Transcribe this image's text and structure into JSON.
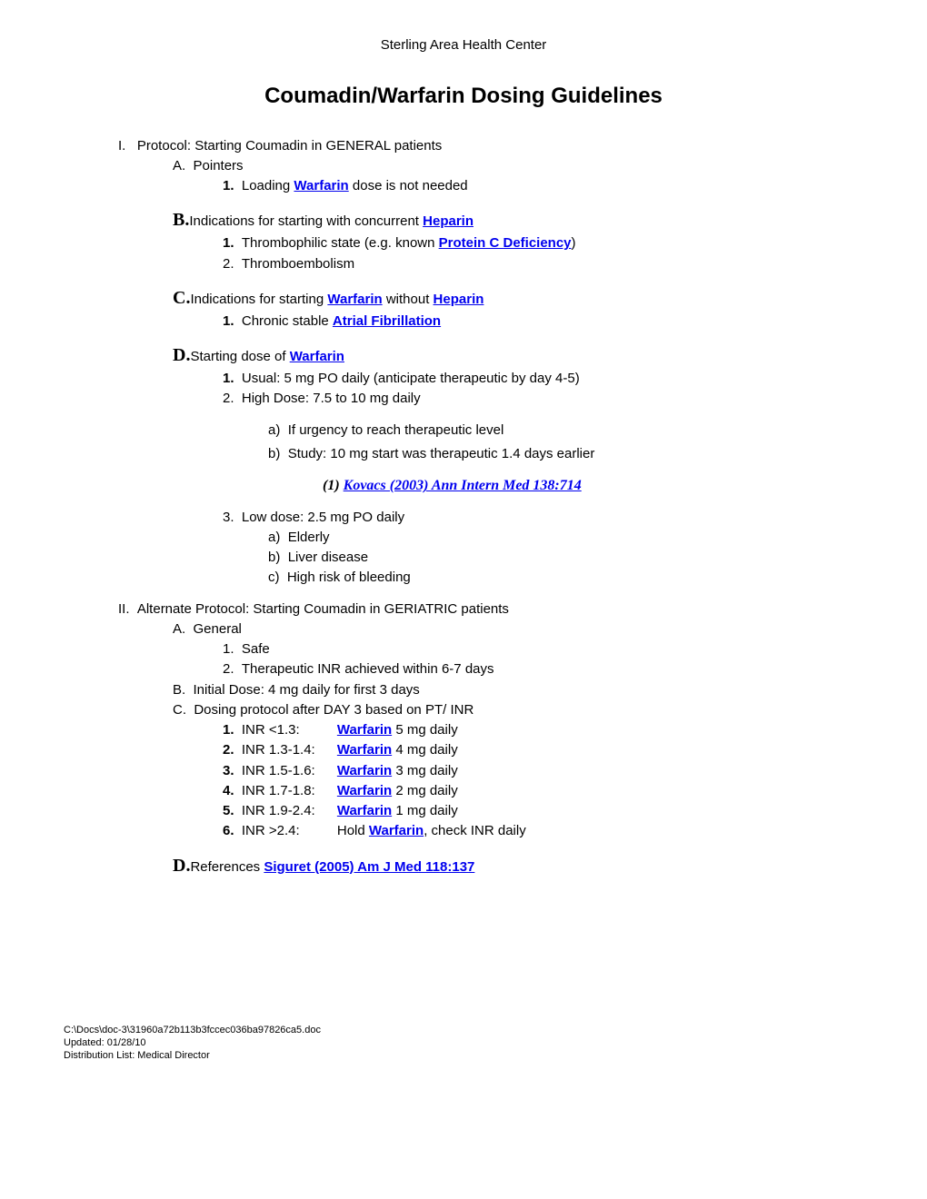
{
  "header": "Sterling Area Health Center",
  "title": "Coumadin/Warfarin Dosing Guidelines",
  "links": {
    "warfarin": "Warfarin",
    "heparin": "Heparin",
    "proteinC": "Protein C Deficiency",
    "afib": "Atrial Fibrillation",
    "kovacs": "Kovacs (2003) Ann Intern Med 138:714",
    "siguret": "Siguret (2005) Am J Med 118:137"
  },
  "sec1": {
    "heading": "Protocol: Starting Coumadin in GENERAL patients",
    "A": {
      "title": "Pointers",
      "item1_pre": "Loading ",
      "item1_post": " dose is not needed"
    },
    "B": {
      "title_pre": "Indications for starting with concurrent ",
      "item1_pre": "Thrombophilic state (e.g. known ",
      "item1_post": ")",
      "item2": "Thromboembolism"
    },
    "C": {
      "title_pre": "Indications for starting ",
      "title_mid": " without ",
      "item1_pre": "Chronic stable "
    },
    "D": {
      "title_pre": "Starting dose of ",
      "item1": "Usual: 5 mg PO daily (anticipate therapeutic by day 4-5)",
      "item2": "High Dose: 7.5 to 10 mg daily",
      "item2a": "If urgency to reach therapeutic level",
      "item2b": "Study: 10 mg start was therapeutic 1.4 days earlier",
      "cite_prefix": "(1) ",
      "item3": "Low dose: 2.5 mg PO daily",
      "item3a": "Elderly",
      "item3b": "Liver disease",
      "item3c": "High risk of bleeding"
    }
  },
  "sec2": {
    "heading": "Alternate Protocol: Starting Coumadin in GERIATRIC patients",
    "A": {
      "title": "General",
      "item1": "Safe",
      "item2": "Therapeutic INR achieved within 6-7 days"
    },
    "B": "Initial Dose: 4 mg daily for first 3 days",
    "C": {
      "title": "Dosing protocol after DAY 3 based on PT/ INR",
      "rows": [
        {
          "n": "1.",
          "range": "INR <1.3:",
          "dose": " 5 mg daily"
        },
        {
          "n": "2.",
          "range": "INR 1.3-1.4:",
          "dose": " 4 mg daily"
        },
        {
          "n": "3.",
          "range": "INR 1.5-1.6:",
          "dose": " 3 mg daily"
        },
        {
          "n": "4.",
          "range": "INR 1.7-1.8:",
          "dose": " 2 mg daily"
        },
        {
          "n": "5.",
          "range": "INR 1.9-2.4:",
          "dose": " 1 mg daily"
        }
      ],
      "row6": {
        "n": "6.",
        "range": "INR >2.4:",
        "pre": "Hold ",
        "post": ", check INR daily"
      }
    },
    "D": {
      "title_pre": "References "
    }
  },
  "footer": {
    "l1": "C:\\Docs\\doc-3\\31960a72b113b3fccec036ba97826ca5.doc",
    "l2": "Updated:  01/28/10",
    "l3": "Distribution List:  Medical Director"
  }
}
